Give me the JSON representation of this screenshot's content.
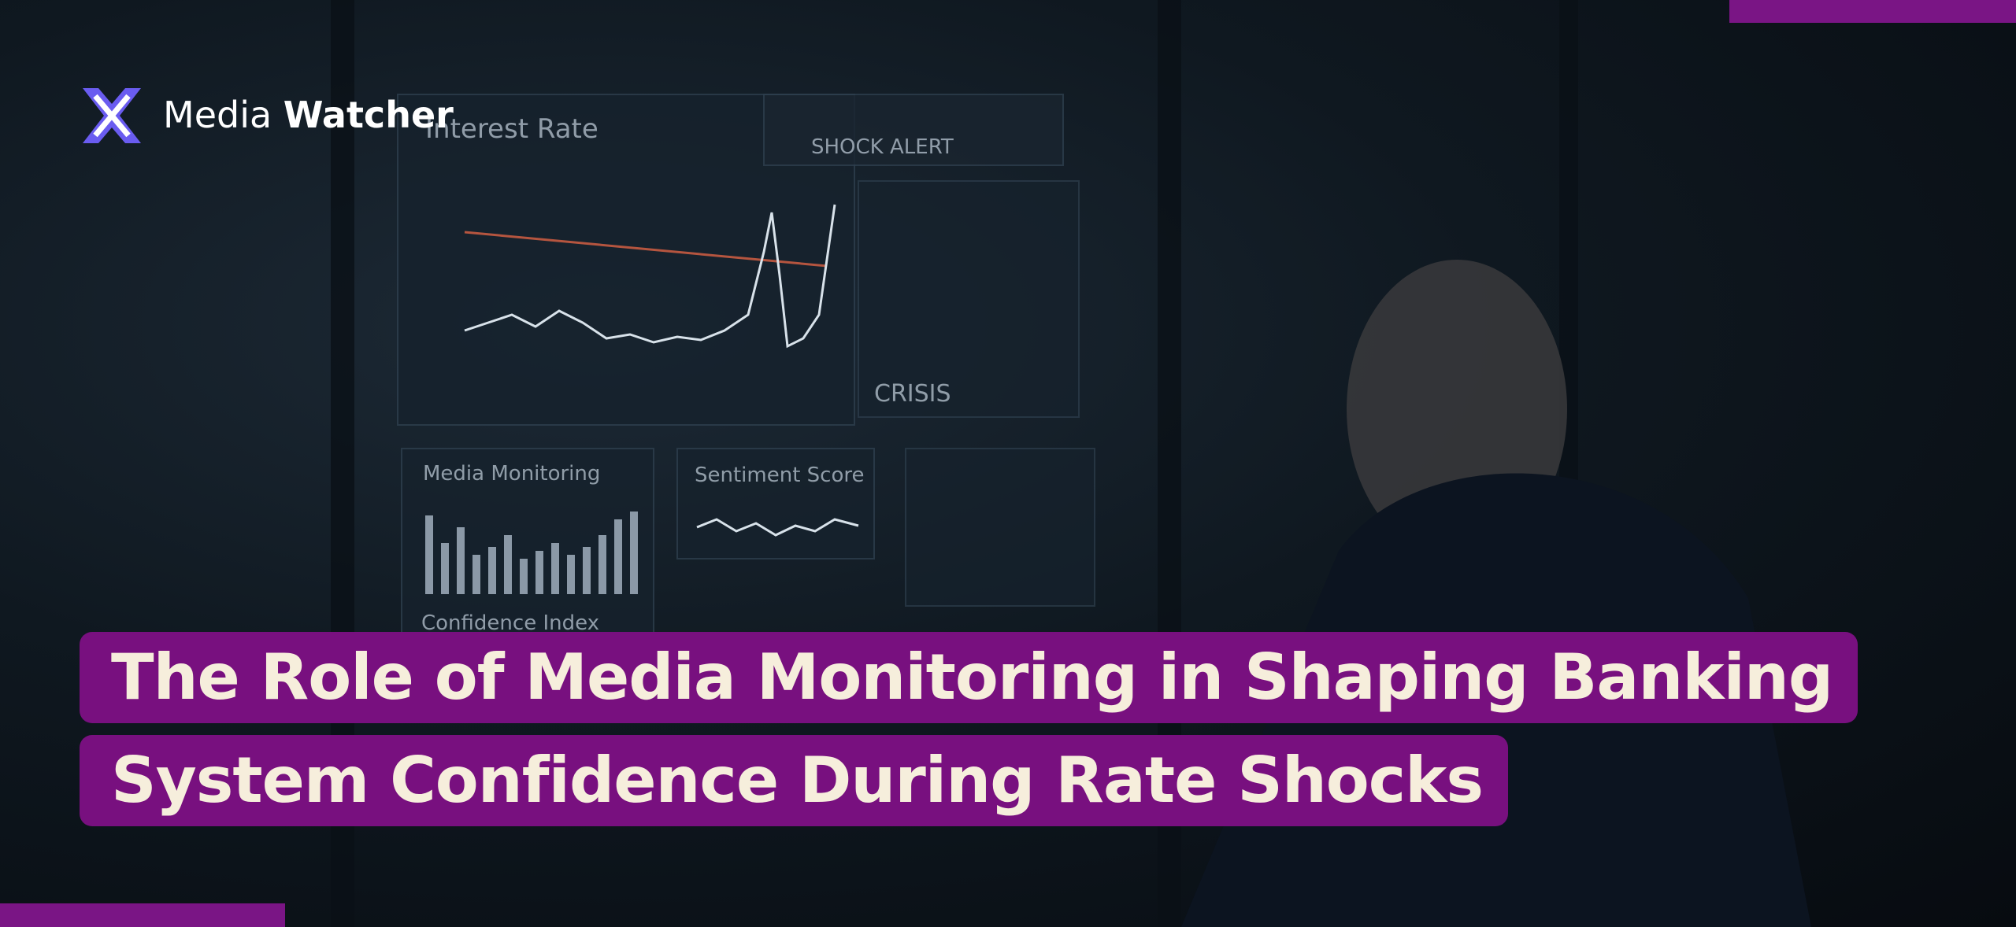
{
  "logo": {
    "name_light": "Media",
    "name_bold": "Watcher"
  },
  "title_lines": [
    "The Role of Media Monitoring in Shaping Banking",
    "System Confidence During Rate Shocks"
  ],
  "scene_texts": [
    "Interest Rate",
    "SHOCK ALERT",
    "CRISIS",
    "Media Monitoring",
    "Sentiment Score",
    "Confidence Index"
  ]
}
